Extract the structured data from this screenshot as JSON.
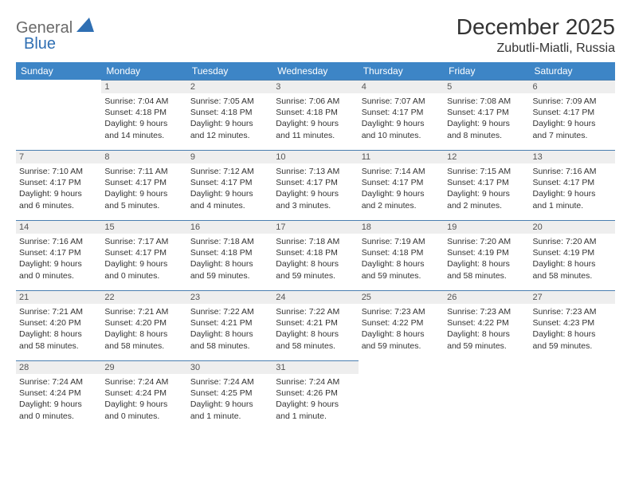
{
  "brand": {
    "part1": "General",
    "part2": "Blue"
  },
  "title": "December 2025",
  "location": "Zubutli-Miatli, Russia",
  "colors": {
    "header_bg": "#3d85c6",
    "header_text": "#ffffff",
    "daynum_bg": "#eeeeee",
    "rule": "#4a7fb0",
    "brand_gray": "#6a6a6a",
    "brand_blue": "#2f6fb3",
    "page_bg": "#ffffff"
  },
  "weekdays": [
    "Sunday",
    "Monday",
    "Tuesday",
    "Wednesday",
    "Thursday",
    "Friday",
    "Saturday"
  ],
  "weeks": [
    [
      null,
      {
        "n": "1",
        "sr": "Sunrise: 7:04 AM",
        "ss": "Sunset: 4:18 PM",
        "d1": "Daylight: 9 hours",
        "d2": "and 14 minutes."
      },
      {
        "n": "2",
        "sr": "Sunrise: 7:05 AM",
        "ss": "Sunset: 4:18 PM",
        "d1": "Daylight: 9 hours",
        "d2": "and 12 minutes."
      },
      {
        "n": "3",
        "sr": "Sunrise: 7:06 AM",
        "ss": "Sunset: 4:18 PM",
        "d1": "Daylight: 9 hours",
        "d2": "and 11 minutes."
      },
      {
        "n": "4",
        "sr": "Sunrise: 7:07 AM",
        "ss": "Sunset: 4:17 PM",
        "d1": "Daylight: 9 hours",
        "d2": "and 10 minutes."
      },
      {
        "n": "5",
        "sr": "Sunrise: 7:08 AM",
        "ss": "Sunset: 4:17 PM",
        "d1": "Daylight: 9 hours",
        "d2": "and 8 minutes."
      },
      {
        "n": "6",
        "sr": "Sunrise: 7:09 AM",
        "ss": "Sunset: 4:17 PM",
        "d1": "Daylight: 9 hours",
        "d2": "and 7 minutes."
      }
    ],
    [
      {
        "n": "7",
        "sr": "Sunrise: 7:10 AM",
        "ss": "Sunset: 4:17 PM",
        "d1": "Daylight: 9 hours",
        "d2": "and 6 minutes."
      },
      {
        "n": "8",
        "sr": "Sunrise: 7:11 AM",
        "ss": "Sunset: 4:17 PM",
        "d1": "Daylight: 9 hours",
        "d2": "and 5 minutes."
      },
      {
        "n": "9",
        "sr": "Sunrise: 7:12 AM",
        "ss": "Sunset: 4:17 PM",
        "d1": "Daylight: 9 hours",
        "d2": "and 4 minutes."
      },
      {
        "n": "10",
        "sr": "Sunrise: 7:13 AM",
        "ss": "Sunset: 4:17 PM",
        "d1": "Daylight: 9 hours",
        "d2": "and 3 minutes."
      },
      {
        "n": "11",
        "sr": "Sunrise: 7:14 AM",
        "ss": "Sunset: 4:17 PM",
        "d1": "Daylight: 9 hours",
        "d2": "and 2 minutes."
      },
      {
        "n": "12",
        "sr": "Sunrise: 7:15 AM",
        "ss": "Sunset: 4:17 PM",
        "d1": "Daylight: 9 hours",
        "d2": "and 2 minutes."
      },
      {
        "n": "13",
        "sr": "Sunrise: 7:16 AM",
        "ss": "Sunset: 4:17 PM",
        "d1": "Daylight: 9 hours",
        "d2": "and 1 minute."
      }
    ],
    [
      {
        "n": "14",
        "sr": "Sunrise: 7:16 AM",
        "ss": "Sunset: 4:17 PM",
        "d1": "Daylight: 9 hours",
        "d2": "and 0 minutes."
      },
      {
        "n": "15",
        "sr": "Sunrise: 7:17 AM",
        "ss": "Sunset: 4:17 PM",
        "d1": "Daylight: 9 hours",
        "d2": "and 0 minutes."
      },
      {
        "n": "16",
        "sr": "Sunrise: 7:18 AM",
        "ss": "Sunset: 4:18 PM",
        "d1": "Daylight: 8 hours",
        "d2": "and 59 minutes."
      },
      {
        "n": "17",
        "sr": "Sunrise: 7:18 AM",
        "ss": "Sunset: 4:18 PM",
        "d1": "Daylight: 8 hours",
        "d2": "and 59 minutes."
      },
      {
        "n": "18",
        "sr": "Sunrise: 7:19 AM",
        "ss": "Sunset: 4:18 PM",
        "d1": "Daylight: 8 hours",
        "d2": "and 59 minutes."
      },
      {
        "n": "19",
        "sr": "Sunrise: 7:20 AM",
        "ss": "Sunset: 4:19 PM",
        "d1": "Daylight: 8 hours",
        "d2": "and 58 minutes."
      },
      {
        "n": "20",
        "sr": "Sunrise: 7:20 AM",
        "ss": "Sunset: 4:19 PM",
        "d1": "Daylight: 8 hours",
        "d2": "and 58 minutes."
      }
    ],
    [
      {
        "n": "21",
        "sr": "Sunrise: 7:21 AM",
        "ss": "Sunset: 4:20 PM",
        "d1": "Daylight: 8 hours",
        "d2": "and 58 minutes."
      },
      {
        "n": "22",
        "sr": "Sunrise: 7:21 AM",
        "ss": "Sunset: 4:20 PM",
        "d1": "Daylight: 8 hours",
        "d2": "and 58 minutes."
      },
      {
        "n": "23",
        "sr": "Sunrise: 7:22 AM",
        "ss": "Sunset: 4:21 PM",
        "d1": "Daylight: 8 hours",
        "d2": "and 58 minutes."
      },
      {
        "n": "24",
        "sr": "Sunrise: 7:22 AM",
        "ss": "Sunset: 4:21 PM",
        "d1": "Daylight: 8 hours",
        "d2": "and 58 minutes."
      },
      {
        "n": "25",
        "sr": "Sunrise: 7:23 AM",
        "ss": "Sunset: 4:22 PM",
        "d1": "Daylight: 8 hours",
        "d2": "and 59 minutes."
      },
      {
        "n": "26",
        "sr": "Sunrise: 7:23 AM",
        "ss": "Sunset: 4:22 PM",
        "d1": "Daylight: 8 hours",
        "d2": "and 59 minutes."
      },
      {
        "n": "27",
        "sr": "Sunrise: 7:23 AM",
        "ss": "Sunset: 4:23 PM",
        "d1": "Daylight: 8 hours",
        "d2": "and 59 minutes."
      }
    ],
    [
      {
        "n": "28",
        "sr": "Sunrise: 7:24 AM",
        "ss": "Sunset: 4:24 PM",
        "d1": "Daylight: 9 hours",
        "d2": "and 0 minutes."
      },
      {
        "n": "29",
        "sr": "Sunrise: 7:24 AM",
        "ss": "Sunset: 4:24 PM",
        "d1": "Daylight: 9 hours",
        "d2": "and 0 minutes."
      },
      {
        "n": "30",
        "sr": "Sunrise: 7:24 AM",
        "ss": "Sunset: 4:25 PM",
        "d1": "Daylight: 9 hours",
        "d2": "and 1 minute."
      },
      {
        "n": "31",
        "sr": "Sunrise: 7:24 AM",
        "ss": "Sunset: 4:26 PM",
        "d1": "Daylight: 9 hours",
        "d2": "and 1 minute."
      },
      null,
      null,
      null
    ]
  ]
}
